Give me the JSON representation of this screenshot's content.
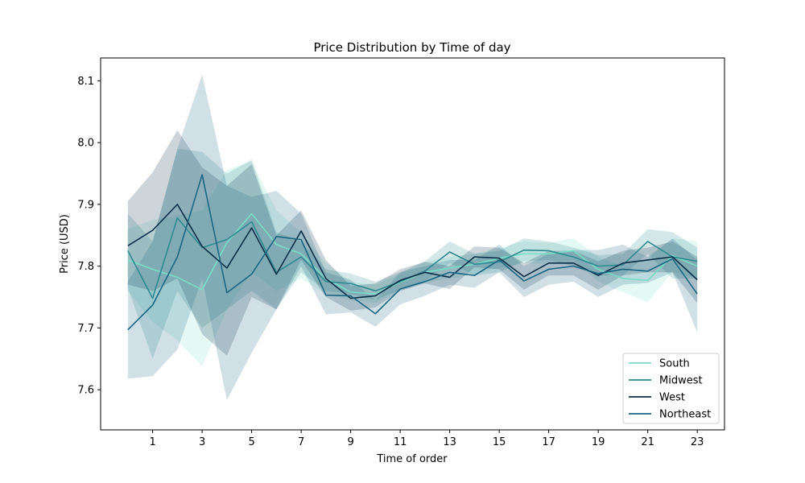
{
  "chart_data": {
    "type": "line",
    "title": "Price Distribution by Time of day",
    "xlabel": "Time of order",
    "ylabel": "Price (USD)",
    "x": [
      0,
      1,
      2,
      3,
      4,
      5,
      6,
      7,
      8,
      9,
      10,
      11,
      12,
      13,
      14,
      15,
      16,
      17,
      18,
      19,
      20,
      21,
      22,
      23
    ],
    "x_ticks": [
      1,
      3,
      5,
      7,
      9,
      11,
      13,
      15,
      17,
      19,
      21,
      23
    ],
    "y_ticks": [
      7.6,
      7.7,
      7.8,
      7.9,
      8.0,
      8.1
    ],
    "xlim": [
      -1.1,
      24.1
    ],
    "ylim": [
      7.535,
      8.137
    ],
    "grid": false,
    "legend_position": "lower-right",
    "series": [
      {
        "name": "South",
        "color": "#79dcc7",
        "values": [
          7.81,
          7.795,
          7.782,
          7.762,
          7.838,
          7.885,
          7.835,
          7.82,
          7.78,
          7.758,
          7.755,
          7.774,
          7.79,
          7.797,
          7.803,
          7.813,
          7.82,
          7.82,
          7.825,
          7.795,
          7.78,
          7.777,
          7.817,
          7.8
        ],
        "lower": [
          7.76,
          7.71,
          7.68,
          7.638,
          7.73,
          7.79,
          7.76,
          7.78,
          7.755,
          7.745,
          7.74,
          7.76,
          7.773,
          7.78,
          7.787,
          7.797,
          7.805,
          7.803,
          7.81,
          7.775,
          7.758,
          7.742,
          7.79,
          7.78
        ],
        "upper": [
          7.86,
          7.875,
          7.882,
          7.89,
          7.955,
          7.97,
          7.89,
          7.855,
          7.805,
          7.775,
          7.77,
          7.788,
          7.807,
          7.815,
          7.82,
          7.83,
          7.84,
          7.838,
          7.845,
          7.815,
          7.8,
          7.812,
          7.845,
          7.84
        ]
      },
      {
        "name": "Midwest",
        "color": "#2f8a90",
        "values": [
          7.825,
          7.748,
          7.878,
          7.83,
          7.843,
          7.872,
          7.79,
          7.815,
          7.775,
          7.772,
          7.76,
          7.775,
          7.792,
          7.823,
          7.803,
          7.807,
          7.826,
          7.825,
          7.815,
          7.8,
          7.802,
          7.84,
          7.815,
          7.808
        ],
        "lower": [
          7.765,
          7.65,
          7.76,
          7.7,
          7.73,
          7.76,
          7.73,
          7.79,
          7.76,
          7.755,
          7.745,
          7.762,
          7.776,
          7.805,
          7.785,
          7.79,
          7.808,
          7.81,
          7.8,
          7.785,
          7.785,
          7.82,
          7.78,
          7.78
        ],
        "upper": [
          7.885,
          7.84,
          7.99,
          7.985,
          7.95,
          7.972,
          7.855,
          7.84,
          7.795,
          7.788,
          7.775,
          7.79,
          7.808,
          7.84,
          7.82,
          7.825,
          7.845,
          7.84,
          7.83,
          7.818,
          7.82,
          7.86,
          7.855,
          7.83
        ]
      },
      {
        "name": "West",
        "color": "#0b2e47",
        "values": [
          7.833,
          7.858,
          7.9,
          7.832,
          7.797,
          7.862,
          7.787,
          7.857,
          7.78,
          7.748,
          7.752,
          7.777,
          7.79,
          7.782,
          7.815,
          7.813,
          7.783,
          7.805,
          7.805,
          7.785,
          7.805,
          7.81,
          7.815,
          7.778
        ],
        "lower": [
          7.77,
          7.76,
          7.78,
          7.69,
          7.655,
          7.75,
          7.73,
          7.81,
          7.75,
          7.728,
          7.733,
          7.76,
          7.772,
          7.763,
          7.798,
          7.795,
          7.762,
          7.785,
          7.785,
          7.762,
          7.785,
          7.79,
          7.79,
          7.74
        ],
        "upper": [
          7.905,
          7.952,
          8.02,
          7.96,
          7.93,
          7.965,
          7.85,
          7.89,
          7.81,
          7.768,
          7.772,
          7.795,
          7.807,
          7.8,
          7.832,
          7.83,
          7.805,
          7.825,
          7.825,
          7.808,
          7.825,
          7.83,
          7.84,
          7.815
        ]
      },
      {
        "name": "Northeast",
        "color": "#1b6682",
        "values": [
          7.697,
          7.737,
          7.815,
          7.948,
          7.757,
          7.787,
          7.848,
          7.843,
          7.753,
          7.752,
          7.723,
          7.763,
          7.775,
          7.79,
          7.785,
          7.81,
          7.776,
          7.795,
          7.8,
          7.788,
          7.795,
          7.792,
          7.812,
          7.755
        ],
        "lower": [
          7.618,
          7.622,
          7.665,
          7.78,
          7.583,
          7.66,
          7.73,
          7.8,
          7.722,
          7.725,
          7.702,
          7.738,
          7.752,
          7.77,
          7.765,
          7.79,
          7.75,
          7.77,
          7.775,
          7.75,
          7.77,
          7.773,
          7.79,
          7.693
        ],
        "upper": [
          7.775,
          7.84,
          7.99,
          8.11,
          7.93,
          7.912,
          7.922,
          7.885,
          7.79,
          7.778,
          7.745,
          7.79,
          7.8,
          7.81,
          7.81,
          7.835,
          7.8,
          7.82,
          7.826,
          7.826,
          7.835,
          7.815,
          7.845,
          7.81
        ]
      }
    ]
  }
}
